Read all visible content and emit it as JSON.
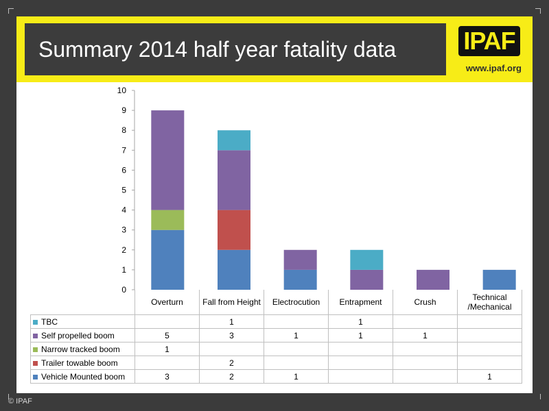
{
  "slide": {
    "title": "Summary 2014 half year fatality data",
    "logo_text": "IPAF",
    "url": "www.ipaf.org",
    "footer": "© IPAF"
  },
  "colors": {
    "banner": "#f7ec17",
    "title_box": "#3c3c3c"
  },
  "chart_data": {
    "type": "bar",
    "stacked": true,
    "categories": [
      "Overturn",
      "Fall from Height",
      "Electrocution",
      "Entrapment",
      "Crush",
      "Technical /Mechanical"
    ],
    "category_lines": [
      [
        "Overturn"
      ],
      [
        "Fall from Height"
      ],
      [
        "Electrocution"
      ],
      [
        "Entrapment"
      ],
      [
        "Crush"
      ],
      [
        "Technical",
        "/Mechanical"
      ]
    ],
    "ylim": [
      0,
      10
    ],
    "yticks": [
      0,
      1,
      2,
      3,
      4,
      5,
      6,
      7,
      8,
      9,
      10
    ],
    "grid": false,
    "legend": "data-table",
    "series": [
      {
        "name": "Vehicle Mounted boom",
        "color": "#4f81bd",
        "values": [
          3,
          2,
          1,
          0,
          0,
          1
        ]
      },
      {
        "name": "Trailer towable boom",
        "color": "#c0504d",
        "values": [
          0,
          2,
          0,
          0,
          0,
          0
        ]
      },
      {
        "name": "Narrow tracked boom",
        "color": "#9bbb59",
        "values": [
          1,
          0,
          0,
          0,
          0,
          0
        ]
      },
      {
        "name": "Self propelled boom",
        "color": "#8064a2",
        "values": [
          5,
          3,
          1,
          1,
          1,
          0
        ]
      },
      {
        "name": "TBC",
        "color": "#4bacc6",
        "values": [
          0,
          1,
          0,
          1,
          0,
          0
        ]
      }
    ]
  }
}
